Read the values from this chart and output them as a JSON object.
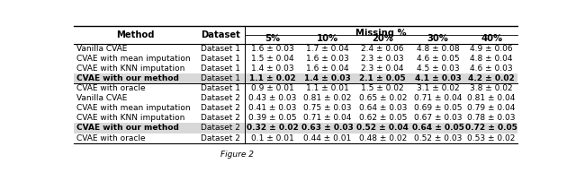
{
  "col_headers_top": [
    "Method",
    "Dataset",
    "Missing %"
  ],
  "col_headers_bot": [
    "",
    "",
    "5%",
    "10%",
    "20%",
    "30%",
    "40%"
  ],
  "rows": [
    {
      "method": "Vanilla CVAE",
      "dataset": "Dataset 1",
      "vals": [
        "1.6 ± 0.03",
        "1.7 ± 0.04",
        "2.4 ± 0.06",
        "4.8 ± 0.08",
        "4.9 ± 0.06"
      ],
      "bold": false,
      "shaded": false
    },
    {
      "method": "CVAE with mean imputation",
      "dataset": "Dataset 1",
      "vals": [
        "1.5 ± 0.04",
        "1.6 ± 0.03",
        "2.3 ± 0.03",
        "4.6 ± 0.05",
        "4.8 ± 0.04"
      ],
      "bold": false,
      "shaded": false
    },
    {
      "method": "CVAE with KNN imputation",
      "dataset": "Dataset 1",
      "vals": [
        "1.4 ± 0.03",
        "1.6 ± 0.04",
        "2.3 ± 0.04",
        "4.5 ± 0.03",
        "4.6 ± 0.03"
      ],
      "bold": false,
      "shaded": false
    },
    {
      "method": "CVAE with our method",
      "dataset": "Dataset 1",
      "vals": [
        "1.1 ± 0.02",
        "1.4 ± 0.03",
        "2.1 ± 0.05",
        "4.1 ± 0.03",
        "4.2 ± 0.02"
      ],
      "bold": true,
      "shaded": true
    },
    {
      "method": "CVAE with oracle",
      "dataset": "Dataset 1",
      "vals": [
        "0.9 ± 0.01",
        "1.1 ± 0.01",
        "1.5 ± 0.02",
        "3.1 ± 0.02",
        "3.8 ± 0.02"
      ],
      "bold": false,
      "shaded": false
    },
    {
      "method": "Vanilla CVAE",
      "dataset": "Dataset 2",
      "vals": [
        "0.43 ± 0.03",
        "0.81 ± 0.02",
        "0.65 ± 0.02",
        "0.71 ± 0.04",
        "0.81 ± 0.04"
      ],
      "bold": false,
      "shaded": false
    },
    {
      "method": "CVAE with mean imputation",
      "dataset": "Dataset 2",
      "vals": [
        "0.41 ± 0.03",
        "0.75 ± 0.03",
        "0.64 ± 0.03",
        "0.69 ± 0.05",
        "0.79 ± 0.04"
      ],
      "bold": false,
      "shaded": false
    },
    {
      "method": "CVAE with KNN imputation",
      "dataset": "Dataset 2",
      "vals": [
        "0.39 ± 0.05",
        "0.71 ± 0.04",
        "0.62 ± 0.05",
        "0.67 ± 0.03",
        "0.78 ± 0.03"
      ],
      "bold": false,
      "shaded": false
    },
    {
      "method": "CVAE with our method",
      "dataset": "Dataset 2",
      "vals": [
        "0.32 ± 0.02",
        "0.63 ± 0.03",
        "0.52 ± 0.04",
        "0.64 ± 0.05",
        "0.72 ± 0.05"
      ],
      "bold": true,
      "shaded": true
    },
    {
      "method": "CVAE with oracle",
      "dataset": "Dataset 2",
      "vals": [
        "0.1 ± 0.01",
        "0.44 ± 0.01",
        "0.48 ± 0.02",
        "0.52 ± 0.03",
        "0.53 ± 0.02"
      ],
      "bold": false,
      "shaded": false
    }
  ],
  "shaded_color": "#d8d8d8",
  "divider_after_row": 4,
  "figure_size": [
    6.4,
    2.02
  ],
  "dpi": 100,
  "fs_header": 7.2,
  "fs_cell": 6.5,
  "caption": "Figure 2"
}
